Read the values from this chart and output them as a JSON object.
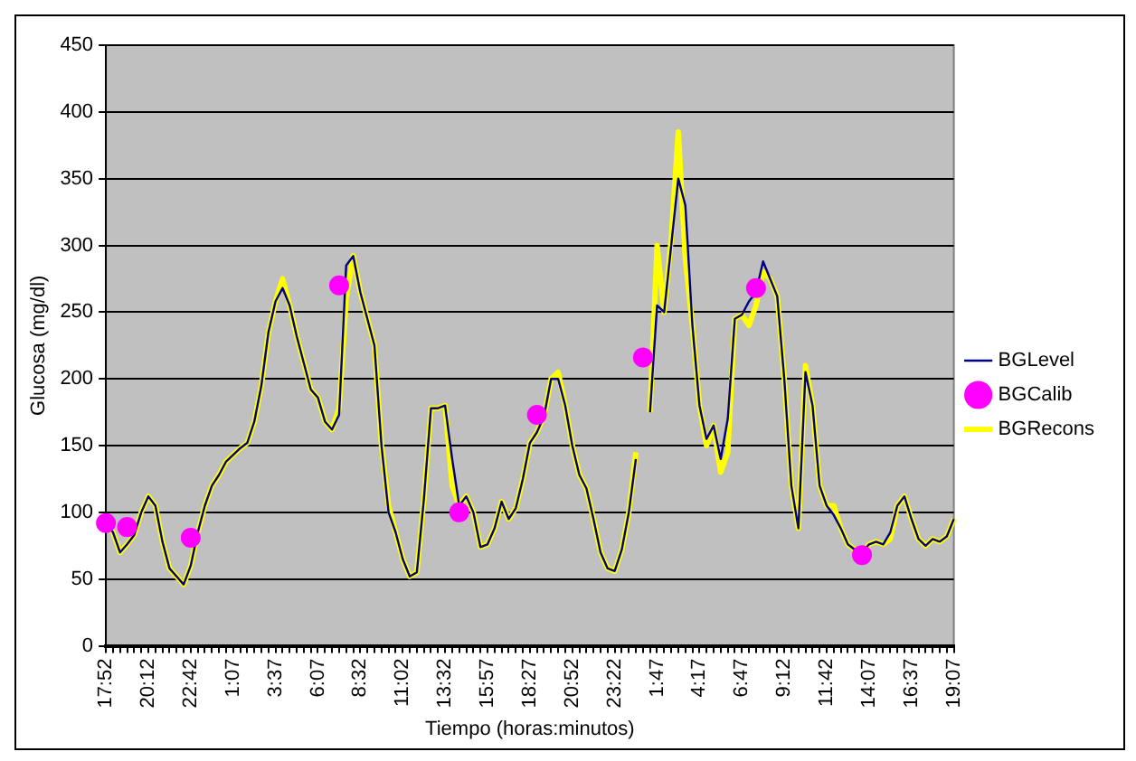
{
  "chart_data": {
    "type": "line",
    "xlabel": "Tiempo (horas:minutos)",
    "ylabel": "Glucosa (mg/dl)",
    "categories": [
      "17:52",
      null,
      null,
      null,
      null,
      null,
      "20:12",
      null,
      null,
      null,
      null,
      null,
      "22:42",
      null,
      null,
      null,
      null,
      null,
      "1:07",
      null,
      null,
      null,
      null,
      null,
      "3:37",
      null,
      null,
      null,
      null,
      null,
      "6:07",
      null,
      null,
      null,
      null,
      null,
      "8:32",
      null,
      null,
      null,
      null,
      null,
      "11:02",
      null,
      null,
      null,
      null,
      null,
      "13:32",
      null,
      null,
      null,
      null,
      null,
      "15:57",
      null,
      null,
      null,
      null,
      null,
      "18:27",
      null,
      null,
      null,
      null,
      null,
      "20:52",
      null,
      null,
      null,
      null,
      null,
      "23:22",
      null,
      null,
      null,
      null,
      null,
      "1:47",
      null,
      null,
      null,
      null,
      null,
      "4:17",
      null,
      null,
      null,
      null,
      null,
      "6:47",
      null,
      null,
      null,
      null,
      null,
      "9:12",
      null,
      null,
      null,
      null,
      null,
      "11:42",
      null,
      null,
      null,
      null,
      null,
      "14:07",
      null,
      null,
      null,
      null,
      null,
      "16:37",
      null,
      null,
      null,
      null,
      null,
      "19:07"
    ],
    "series": [
      {
        "name": "BGLevel",
        "color": "#000080",
        "marker": "none",
        "values": [
          92,
          85,
          70,
          76,
          83,
          100,
          112,
          105,
          78,
          58,
          52,
          46,
          60,
          85,
          105,
          120,
          128,
          138,
          143,
          148,
          152,
          168,
          195,
          235,
          258,
          268,
          255,
          232,
          212,
          192,
          186,
          168,
          162,
          173,
          285,
          292,
          265,
          245,
          225,
          150,
          100,
          85,
          65,
          52,
          55,
          110,
          178,
          178,
          180,
          140,
          105,
          112,
          100,
          74,
          76,
          88,
          108,
          95,
          103,
          125,
          152,
          160,
          172,
          200,
          200,
          180,
          150,
          128,
          118,
          95,
          70,
          58,
          56,
          72,
          100,
          140,
          null,
          175,
          255,
          250,
          300,
          350,
          330,
          240,
          180,
          155,
          165,
          140,
          170,
          245,
          248,
          258,
          265,
          288,
          275,
          262,
          200,
          120,
          88,
          205,
          180,
          120,
          105,
          98,
          88,
          76,
          72,
          70,
          76,
          78,
          76,
          85,
          105,
          112,
          95,
          80,
          75,
          80,
          78,
          82,
          95
        ]
      },
      {
        "name": "BGCalib",
        "type": "scatter",
        "color": "#ff00ff",
        "marker": "circle",
        "values": [
          92,
          null,
          null,
          89,
          null,
          null,
          null,
          null,
          null,
          null,
          null,
          null,
          81,
          null,
          null,
          null,
          null,
          null,
          null,
          null,
          null,
          null,
          null,
          null,
          null,
          null,
          null,
          null,
          null,
          null,
          null,
          null,
          null,
          270,
          null,
          null,
          null,
          null,
          null,
          null,
          null,
          null,
          null,
          null,
          null,
          null,
          null,
          null,
          null,
          null,
          100,
          null,
          null,
          null,
          null,
          null,
          null,
          null,
          null,
          null,
          null,
          173,
          null,
          null,
          null,
          null,
          null,
          null,
          null,
          null,
          null,
          null,
          null,
          null,
          null,
          null,
          216,
          null,
          null,
          null,
          null,
          null,
          null,
          null,
          null,
          null,
          null,
          null,
          null,
          null,
          null,
          null,
          268,
          null,
          null,
          null,
          null,
          null,
          null,
          null,
          null,
          null,
          null,
          null,
          null,
          null,
          null,
          68,
          null,
          null,
          null,
          null,
          null,
          null,
          null,
          null,
          null,
          null,
          null,
          null,
          null
        ]
      },
      {
        "name": "BGRecons",
        "color": "#ffff00",
        "marker": "none",
        "values": [
          92,
          85,
          70,
          76,
          83,
          100,
          112,
          105,
          78,
          58,
          52,
          46,
          60,
          85,
          105,
          120,
          128,
          138,
          143,
          148,
          152,
          168,
          195,
          235,
          258,
          275,
          255,
          232,
          212,
          192,
          186,
          168,
          162,
          178,
          260,
          292,
          265,
          245,
          225,
          150,
          105,
          85,
          65,
          52,
          55,
          110,
          178,
          178,
          180,
          120,
          105,
          112,
          100,
          74,
          76,
          88,
          108,
          95,
          103,
          125,
          152,
          160,
          172,
          200,
          205,
          180,
          150,
          128,
          118,
          95,
          70,
          58,
          56,
          72,
          100,
          145,
          null,
          175,
          300,
          250,
          305,
          385,
          290,
          240,
          180,
          150,
          165,
          130,
          145,
          245,
          248,
          240,
          255,
          280,
          275,
          262,
          200,
          120,
          88,
          210,
          180,
          120,
          105,
          105,
          88,
          76,
          72,
          70,
          76,
          78,
          76,
          80,
          105,
          112,
          95,
          80,
          75,
          80,
          78,
          82,
          95
        ]
      }
    ],
    "ylim": [
      0,
      450
    ],
    "yticks": [
      0,
      50,
      100,
      150,
      200,
      250,
      300,
      350,
      400,
      450
    ],
    "grid": "y",
    "legend": "right"
  }
}
